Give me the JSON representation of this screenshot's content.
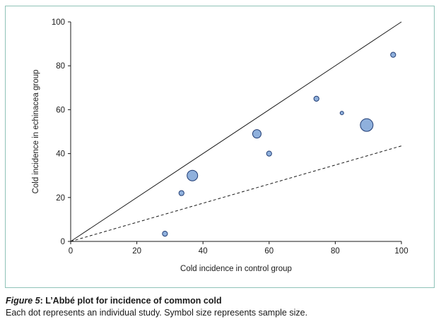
{
  "chart_data": {
    "type": "scatter",
    "xlabel": "Cold incidence in control group",
    "ylabel": "Cold incidence in echinacea group",
    "xlim": [
      0,
      100
    ],
    "ylim": [
      0,
      100
    ],
    "xticks": [
      0,
      20,
      40,
      60,
      80,
      100
    ],
    "yticks": [
      0,
      20,
      40,
      60,
      80,
      100
    ],
    "grid": false,
    "reference_lines": [
      {
        "style": "solid",
        "points": [
          [
            0,
            0
          ],
          [
            100,
            100
          ]
        ]
      },
      {
        "style": "dashed",
        "points": [
          [
            0,
            0
          ],
          [
            100,
            43.5
          ]
        ]
      }
    ],
    "points": [
      {
        "x": 28.5,
        "y": 3.5,
        "size": "small"
      },
      {
        "x": 33.5,
        "y": 22,
        "size": "small"
      },
      {
        "x": 36.8,
        "y": 30,
        "size": "large"
      },
      {
        "x": 56.3,
        "y": 49,
        "size": "medium"
      },
      {
        "x": 60,
        "y": 40,
        "size": "small"
      },
      {
        "x": 74.3,
        "y": 65,
        "size": "small"
      },
      {
        "x": 82,
        "y": 58.5,
        "size": "very-small"
      },
      {
        "x": 89.5,
        "y": 53,
        "size": "very-large"
      },
      {
        "x": 97.5,
        "y": 85,
        "size": "small"
      }
    ],
    "colors": {
      "marker_fill": "#8fb0dc",
      "marker_stroke": "#1f3b73",
      "line": "#1a1a1a"
    }
  },
  "caption": {
    "figure_label": "Figure 5",
    "title_rest": ": L’Abbé plot for incidence of common cold",
    "text": "Each dot represents an individual study. Symbol size represents sample size."
  }
}
